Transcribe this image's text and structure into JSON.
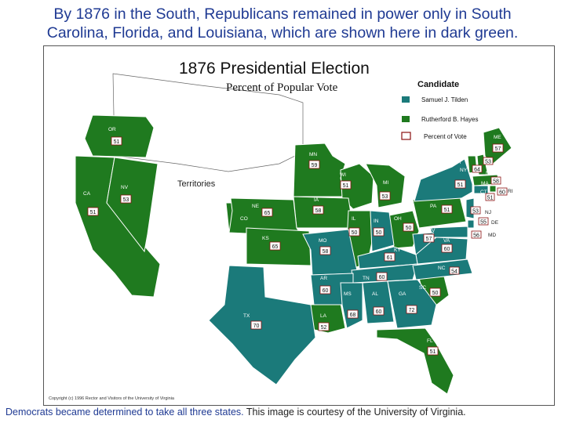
{
  "caption": {
    "line1": "By 1876 in the South, Republicans remained in power only in South",
    "line2": "Carolina, Florida, and Louisiana, which are shown here in dark green.",
    "bottom_blue": "Democrats became determined to take all three states.",
    "bottom_dark": " This image is courtesy of the University of Virginia."
  },
  "map": {
    "title": "1876 Presidential Election",
    "subtitle": "Percent of Popular Vote",
    "territories_label": "Territories",
    "copyright": "Copyright (c) 1996 Rector and Visitors of the University of Virginia",
    "legend": {
      "title": "Candidate",
      "tilden": "Samuel J. Tilden",
      "hayes": "Rutherford B. Hayes",
      "percent": "Percent of Vote"
    },
    "colors": {
      "tilden": "#1b7a7a",
      "hayes": "#1f7a1f",
      "border": "#ffffff"
    },
    "states": [
      {
        "abbr": "OR",
        "pct": "51",
        "party": "hayes"
      },
      {
        "abbr": "CA",
        "pct": "51",
        "party": "hayes"
      },
      {
        "abbr": "NV",
        "pct": "53",
        "party": "hayes"
      },
      {
        "abbr": "MN",
        "pct": "59",
        "party": "hayes"
      },
      {
        "abbr": "WI",
        "pct": "51",
        "party": "hayes"
      },
      {
        "abbr": "MI",
        "pct": "53",
        "party": "hayes"
      },
      {
        "abbr": "IA",
        "pct": "58",
        "party": "hayes"
      },
      {
        "abbr": "NE",
        "pct": "65",
        "party": "hayes"
      },
      {
        "abbr": "KS",
        "pct": "65",
        "party": "hayes"
      },
      {
        "abbr": "IL",
        "pct": "50",
        "party": "hayes"
      },
      {
        "abbr": "IN",
        "pct": "50",
        "party": "tilden"
      },
      {
        "abbr": "OH",
        "pct": "50",
        "party": "hayes"
      },
      {
        "abbr": "PA",
        "pct": "51",
        "party": "hayes"
      },
      {
        "abbr": "NY",
        "pct": "51",
        "party": "tilden"
      },
      {
        "abbr": "VT",
        "pct": "53",
        "party": "hayes"
      },
      {
        "abbr": "NH",
        "pct": "64",
        "party": "hayes"
      },
      {
        "abbr": "ME",
        "pct": "57",
        "party": "hayes"
      },
      {
        "abbr": "MA",
        "pct": "58",
        "party": "hayes"
      },
      {
        "abbr": "RI",
        "pct": "60",
        "party": "hayes"
      },
      {
        "abbr": "CT",
        "pct": "51",
        "party": "tilden"
      },
      {
        "abbr": "NJ",
        "pct": "53",
        "party": "tilden"
      },
      {
        "abbr": "DE",
        "pct": "55",
        "party": "tilden"
      },
      {
        "abbr": "MD",
        "pct": "56",
        "party": "tilden"
      },
      {
        "abbr": "WV",
        "pct": "57",
        "party": "tilden"
      },
      {
        "abbr": "VA",
        "pct": "60",
        "party": "tilden"
      },
      {
        "abbr": "KY",
        "pct": "61",
        "party": "tilden"
      },
      {
        "abbr": "MO",
        "pct": "58",
        "party": "tilden"
      },
      {
        "abbr": "TN",
        "pct": "60",
        "party": "tilden"
      },
      {
        "abbr": "NC",
        "pct": "54",
        "party": "tilden"
      },
      {
        "abbr": "SC",
        "pct": "50",
        "party": "hayes"
      },
      {
        "abbr": "AR",
        "pct": "60",
        "party": "tilden"
      },
      {
        "abbr": "MS",
        "pct": "68",
        "party": "tilden"
      },
      {
        "abbr": "AL",
        "pct": "60",
        "party": "tilden"
      },
      {
        "abbr": "GA",
        "pct": "72",
        "party": "tilden"
      },
      {
        "abbr": "TX",
        "pct": "70",
        "party": "tilden"
      },
      {
        "abbr": "LA",
        "pct": "52",
        "party": "hayes"
      },
      {
        "abbr": "FL",
        "pct": "51",
        "party": "hayes"
      },
      {
        "abbr": "CO",
        "pct": "",
        "party": "hayes"
      }
    ]
  }
}
